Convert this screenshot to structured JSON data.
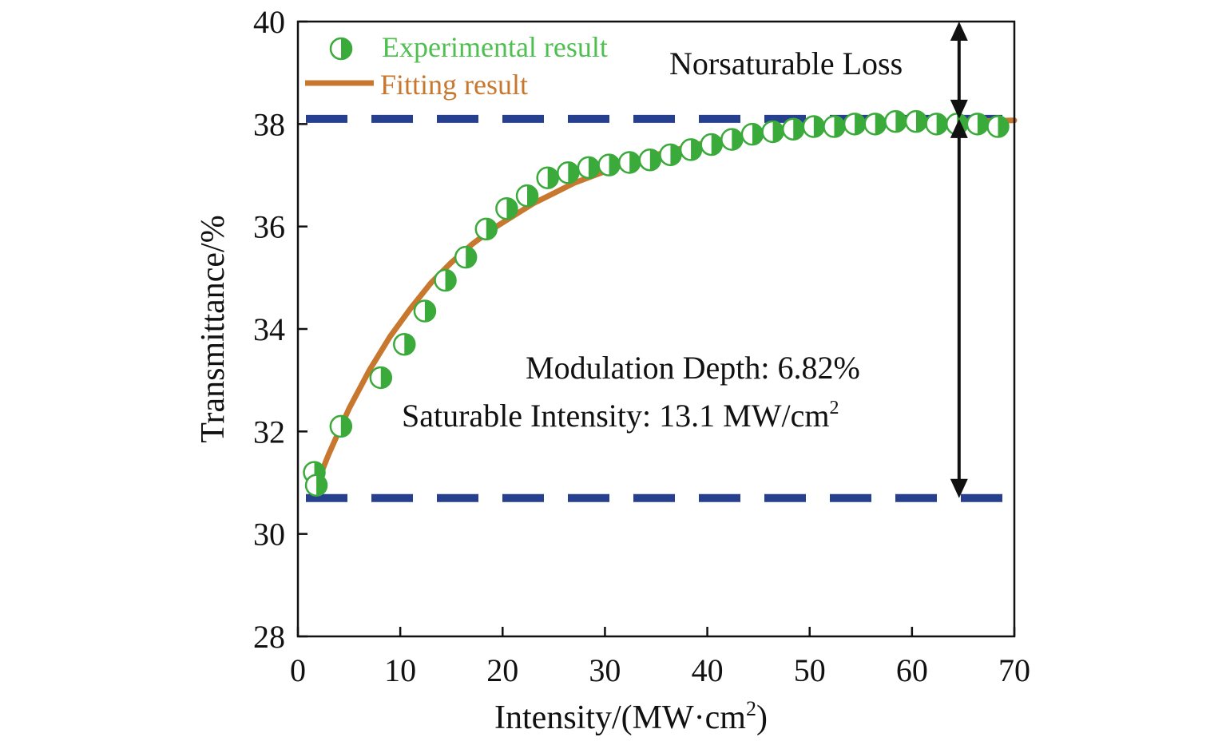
{
  "chart_data": {
    "type": "scatter",
    "xlabel": "Intensity/(MW·cm",
    "xlabel_sup": "2",
    "xlabel_close": ")",
    "ylabel": "Transmittance/%",
    "xlim": [
      0,
      70
    ],
    "ylim": [
      28,
      40
    ],
    "x_ticks": [
      0,
      10,
      20,
      30,
      40,
      50,
      60,
      70
    ],
    "y_ticks": [
      28,
      30,
      32,
      34,
      36,
      38,
      40
    ],
    "grid": false,
    "legend_position": "top-left",
    "series": [
      {
        "name": "Experimental result",
        "kind": "points",
        "color": "#3aaa3a",
        "x": [
          1.6,
          1.8,
          4.2,
          8.1,
          10.4,
          12.4,
          14.4,
          16.4,
          18.4,
          20.4,
          22.4,
          24.4,
          26.4,
          28.4,
          30.4,
          32.4,
          34.4,
          36.4,
          38.4,
          40.4,
          42.4,
          44.4,
          46.4,
          48.4,
          50.4,
          52.4,
          54.4,
          56.4,
          58.4,
          60.4,
          62.4,
          64.4,
          66.4,
          68.4
        ],
        "y": [
          31.2,
          30.95,
          32.1,
          33.05,
          33.7,
          34.35,
          34.95,
          35.4,
          35.95,
          36.35,
          36.6,
          36.95,
          37.05,
          37.15,
          37.2,
          37.25,
          37.3,
          37.4,
          37.5,
          37.6,
          37.7,
          37.8,
          37.85,
          37.9,
          37.95,
          37.95,
          38.0,
          38.0,
          38.05,
          38.05,
          38.0,
          38.0,
          38.0,
          37.95
        ]
      },
      {
        "name": "Fitting result",
        "kind": "line",
        "color": "#c8772e",
        "x": [
          1.6,
          3,
          5,
          7,
          9,
          11,
          13,
          15,
          17,
          19,
          21,
          23,
          25,
          27,
          29,
          31,
          33,
          35,
          37,
          39,
          41,
          43,
          45,
          47,
          49,
          51,
          53,
          55,
          57,
          59,
          61,
          63,
          65,
          67,
          70
        ],
        "y": [
          30.85,
          31.55,
          32.45,
          33.2,
          33.85,
          34.4,
          34.9,
          35.3,
          35.65,
          35.95,
          36.2,
          36.45,
          36.65,
          36.85,
          37.0,
          37.15,
          37.28,
          37.4,
          37.5,
          37.6,
          37.68,
          37.75,
          37.8,
          37.85,
          37.9,
          37.93,
          37.96,
          37.98,
          38.0,
          38.02,
          38.03,
          38.04,
          38.05,
          38.06,
          38.07
        ]
      }
    ],
    "reference_lines": [
      {
        "y": 38.1,
        "style": "dashed",
        "color": "#263f8f"
      },
      {
        "y": 30.7,
        "style": "dashed",
        "color": "#263f8f"
      }
    ],
    "arrows": [
      {
        "x": 64.6,
        "y_from": 40.0,
        "y_to": 38.1
      },
      {
        "x": 64.6,
        "y_from": 38.1,
        "y_to": 30.7
      }
    ],
    "annotations": {
      "nonsaturable": "Norsaturable Loss",
      "modulation": "Modulation Depth: 6.82%",
      "saturable": "Saturable Intensity: 13.1 MW/cm",
      "saturable_sup": "2"
    }
  }
}
